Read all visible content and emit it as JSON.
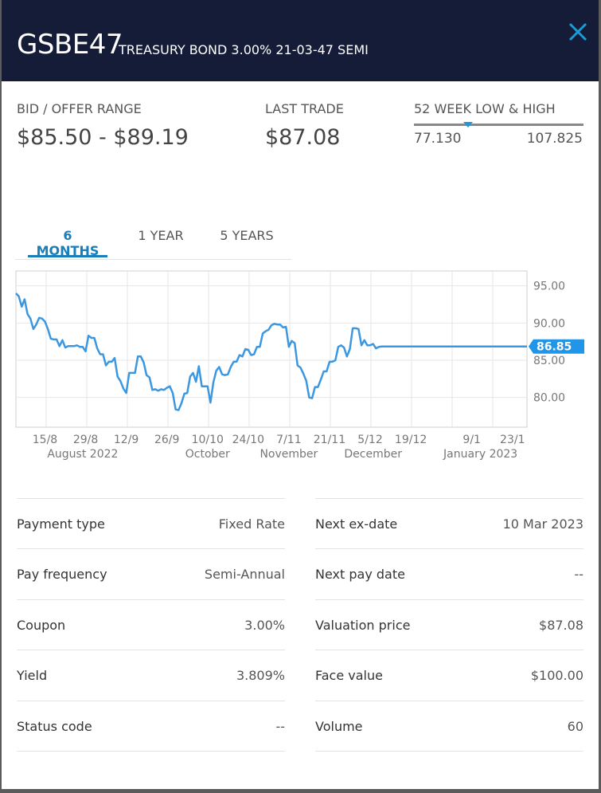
{
  "header": {
    "ticker": "GSBE47",
    "bond_name": "TREASURY BOND 3.00% 21-03-47 SEMI"
  },
  "stats": {
    "bid_offer_label": "BID / OFFER RANGE",
    "bid_offer_value": "$85.50 - $89.19",
    "last_trade_label": "LAST TRADE",
    "last_trade_value": "$87.08",
    "week52_label": "52 WEEK LOW & HIGH",
    "week52_low": "77.130",
    "week52_high": "107.825",
    "week52_marker_fraction": 0.32
  },
  "tabs": [
    {
      "label": "6 MONTHS",
      "active": true
    },
    {
      "label": "1 YEAR",
      "active": false
    },
    {
      "label": "5 YEARS",
      "active": false
    }
  ],
  "colors": {
    "header_bg": "#141c38",
    "accent": "#1a7fb8",
    "line": "#3b97e0",
    "marker": "#1a9bd6"
  },
  "chart_data": {
    "type": "line",
    "x_range": [
      0,
      176
    ],
    "ylim": [
      76,
      97
    ],
    "y_ticks": [
      95,
      90,
      85,
      80
    ],
    "y_tick_labels": [
      "95.00",
      "90.00",
      "85.00",
      "80.00"
    ],
    "x_ticks": [
      {
        "x": 10,
        "label": "15/8"
      },
      {
        "x": 24,
        "label": "29/8"
      },
      {
        "x": 38,
        "label": "12/9"
      },
      {
        "x": 52,
        "label": "26/9"
      },
      {
        "x": 66,
        "label": "10/10"
      },
      {
        "x": 80,
        "label": "24/10"
      },
      {
        "x": 94,
        "label": "7/11"
      },
      {
        "x": 108,
        "label": "21/11"
      },
      {
        "x": 122,
        "label": "5/12"
      },
      {
        "x": 136,
        "label": "19/12"
      },
      {
        "x": 157,
        "label": "9/1"
      },
      {
        "x": 171,
        "label": "23/1"
      }
    ],
    "month_labels": [
      {
        "x": 23,
        "label": "August 2022"
      },
      {
        "x": 66,
        "label": "October"
      },
      {
        "x": 94,
        "label": "November"
      },
      {
        "x": 123,
        "label": "December"
      },
      {
        "x": 160,
        "label": "January 2023"
      }
    ],
    "grid": true,
    "last_value_label": "86.85",
    "series": [
      {
        "x": [
          0,
          1,
          2,
          3,
          4,
          5,
          6,
          7,
          8,
          9,
          10,
          11,
          12,
          13,
          14,
          15,
          16,
          17,
          18,
          19,
          20,
          21,
          22,
          23,
          24,
          25,
          26,
          27,
          28,
          29,
          30,
          31,
          32,
          33,
          34,
          35,
          36,
          37,
          38,
          39,
          40,
          41,
          42,
          43,
          44,
          45,
          46,
          47,
          48,
          49,
          50,
          51,
          52,
          53,
          54,
          55,
          56,
          57,
          58,
          59,
          60,
          61,
          62,
          63,
          64,
          65,
          66,
          67,
          68,
          69,
          70,
          71,
          72,
          73,
          74,
          75,
          76,
          77,
          78,
          79,
          80,
          81,
          82,
          83,
          84,
          85,
          86,
          87,
          88,
          89,
          90,
          91,
          92,
          93,
          94,
          95,
          96,
          97,
          98,
          99,
          100,
          101,
          102,
          103,
          104,
          105,
          106,
          107,
          108,
          109,
          110,
          111,
          112,
          113,
          114,
          115,
          116,
          117,
          118,
          119,
          120,
          121,
          122,
          123,
          124,
          125,
          126,
          127,
          128,
          129,
          130,
          131,
          132,
          133,
          134,
          135,
          136,
          137,
          138,
          139,
          140,
          141,
          142,
          143,
          144,
          145,
          146,
          147,
          148,
          149,
          150,
          151,
          152,
          153,
          154,
          155,
          156,
          157,
          158,
          159,
          160,
          161,
          162,
          163,
          164,
          165,
          166,
          167,
          168,
          169,
          170,
          171,
          172,
          173,
          174,
          175,
          176
        ],
        "values": [
          94,
          93.6,
          92.2,
          93.2,
          91.2,
          90.6,
          89.2,
          89.8,
          90.7,
          90.6,
          90.2,
          89.2,
          87.9,
          87.8,
          87.8,
          86.9,
          87.7,
          86.7,
          86.9,
          86.9,
          86.9,
          87,
          86.8,
          86.8,
          86.2,
          88.3,
          88,
          88,
          86.6,
          85.8,
          85.8,
          84.3,
          84.8,
          84.8,
          85.3,
          82.8,
          82.2,
          81.2,
          80.6,
          83.3,
          83.3,
          83.3,
          85.5,
          85.5,
          84.7,
          83,
          82.7,
          81,
          81.1,
          80.9,
          81.1,
          81,
          81.3,
          81.5,
          80.6,
          78.4,
          78.3,
          79.2,
          80.5,
          80.6,
          82.8,
          83.3,
          82.1,
          84.2,
          81.5,
          81.5,
          81.5,
          79.3,
          82,
          83.6,
          84.1,
          83.1,
          83,
          83.1,
          84.1,
          84.8,
          84.8,
          85.7,
          85.5,
          86.5,
          86.4,
          85.7,
          85.8,
          86.8,
          86.8,
          88.6,
          88.9,
          89.1,
          89.7,
          89.9,
          89.8,
          89.8,
          89.4,
          89.5,
          86.8,
          87.6,
          87.3,
          84.3,
          84,
          83.2,
          82.2,
          80,
          79.9,
          81.4,
          81.4,
          82.4,
          83.5,
          83.5,
          84.8,
          84.8,
          85,
          86.8,
          87,
          86.7,
          85.5,
          86.5,
          89.3,
          89.3,
          89.2,
          87,
          87.7,
          87,
          87,
          87.2,
          86.6,
          86.8,
          86.85,
          86.85,
          86.85,
          86.85,
          86.85,
          86.85,
          86.85,
          86.85,
          86.85,
          86.85,
          86.85,
          86.85,
          86.85,
          86.85,
          86.85,
          86.85,
          86.85,
          86.85,
          86.85,
          86.85,
          86.85,
          86.85,
          86.85,
          86.85,
          86.85,
          86.85,
          86.85,
          86.85,
          86.85,
          86.85,
          86.85,
          86.85,
          86.85,
          86.85,
          86.85,
          86.85,
          86.85,
          86.85,
          86.85,
          86.85,
          86.85,
          86.85,
          86.85,
          86.85,
          86.85,
          86.85,
          86.85,
          86.85,
          86.85,
          86.85,
          86.85
        ]
      }
    ]
  },
  "details": {
    "left": [
      {
        "label": "Payment type",
        "value": "Fixed Rate"
      },
      {
        "label": "Pay frequency",
        "value": "Semi-Annual"
      },
      {
        "label": "Coupon",
        "value": "3.00%"
      },
      {
        "label": "Yield",
        "value": "3.809%"
      },
      {
        "label": "Status code",
        "value": "--"
      }
    ],
    "right": [
      {
        "label": "Next ex-date",
        "value": "10 Mar 2023"
      },
      {
        "label": "Next pay date",
        "value": "--"
      },
      {
        "label": "Valuation price",
        "value": "$87.08"
      },
      {
        "label": "Face value",
        "value": "$100.00"
      },
      {
        "label": "Volume",
        "value": "60"
      }
    ]
  }
}
